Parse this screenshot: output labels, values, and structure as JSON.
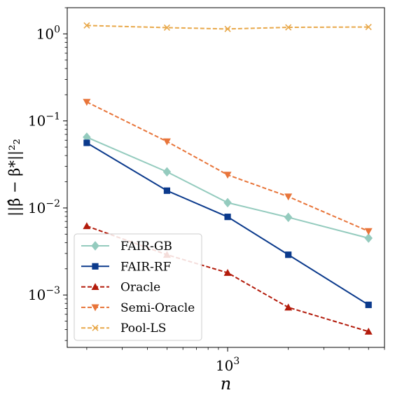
{
  "chart_data": {
    "type": "line",
    "xscale": "log",
    "yscale": "log",
    "xlim": [
      160,
      6000
    ],
    "ylim": [
      0.00025,
      2.0
    ],
    "x": [
      200,
      500,
      1000,
      2000,
      5000
    ],
    "xticks": [
      {
        "value": 1000,
        "base": "10",
        "exp": "3"
      }
    ],
    "yticks": [
      {
        "value": 1,
        "base": "10",
        "exp": "0"
      },
      {
        "value": 0.1,
        "base": "10",
        "exp": "−1"
      },
      {
        "value": 0.01,
        "base": "10",
        "exp": "−2"
      },
      {
        "value": 0.001,
        "base": "10",
        "exp": "−3"
      }
    ],
    "xlabel": "n",
    "ylabel": "||β̂ − β*||²₂",
    "legend_position": "lower-left",
    "grid": false,
    "series": [
      {
        "name": "FAIR-GB",
        "color": "#94cbbe",
        "marker": "diamond",
        "dash": false,
        "values": [
          0.065,
          0.026,
          0.0115,
          0.0078,
          0.0045
        ]
      },
      {
        "name": "FAIR-RF",
        "color": "#0b3a8c",
        "marker": "square",
        "dash": false,
        "values": [
          0.056,
          0.0158,
          0.0079,
          0.0029,
          0.00077
        ]
      },
      {
        "name": "Oracle",
        "color": "#b31b0b",
        "marker": "triangle-up",
        "dash": true,
        "values": [
          0.0062,
          0.0029,
          0.0018,
          0.00072,
          0.00038
        ]
      },
      {
        "name": "Semi-Oracle",
        "color": "#e8753a",
        "marker": "triangle-down",
        "dash": true,
        "values": [
          0.165,
          0.058,
          0.024,
          0.0135,
          0.0054
        ]
      },
      {
        "name": "Pool-LS",
        "color": "#e8a84a",
        "marker": "x",
        "dash": true,
        "values": [
          1.25,
          1.18,
          1.14,
          1.19,
          1.2
        ]
      }
    ]
  }
}
